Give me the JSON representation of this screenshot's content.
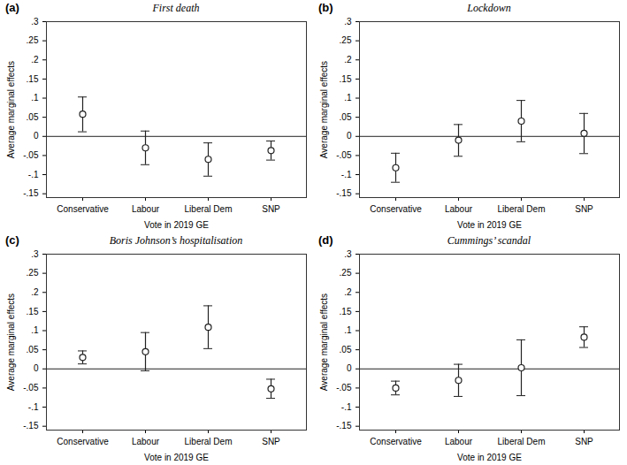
{
  "chart_data": [
    {
      "type": "scatter",
      "title": "First death",
      "annotations": [
        "(a)"
      ],
      "categories": [
        "Conservative",
        "Labour",
        "Liberal Dem",
        "SNP"
      ],
      "values": [
        0.058,
        -0.03,
        -0.06,
        -0.037
      ],
      "lower": [
        0.012,
        -0.074,
        -0.104,
        -0.062
      ],
      "upper": [
        0.103,
        0.014,
        -0.017,
        -0.012
      ],
      "xlabel": "Vote in 2019 GE",
      "ylabel": "Average marginal effects",
      "ylim": [
        -0.16,
        0.3
      ],
      "yticks": [
        {
          "value": -0.15,
          "label": "-.15"
        },
        {
          "value": -0.1,
          "label": "-.1"
        },
        {
          "value": -0.05,
          "label": "-.05"
        },
        0,
        {
          "value": 0.05,
          "label": ".05"
        },
        {
          "value": 0.1,
          "label": ".1"
        },
        {
          "value": 0.15,
          "label": ".15"
        },
        {
          "value": 0.2,
          "label": ".2"
        },
        {
          "value": 0.25,
          "label": ".25"
        },
        {
          "value": 0.3,
          "label": ".3"
        }
      ],
      "hline": 0,
      "color": "#222222",
      "marker": "circle"
    },
    {
      "type": "scatter",
      "title": "Lockdown",
      "annotations": [
        "(b)"
      ],
      "categories": [
        "Conservative",
        "Labour",
        "Liberal Dem",
        "SNP"
      ],
      "values": [
        -0.082,
        -0.01,
        0.04,
        0.008
      ],
      "lower": [
        -0.12,
        -0.052,
        -0.014,
        -0.045
      ],
      "upper": [
        -0.044,
        0.031,
        0.094,
        0.06
      ],
      "xlabel": "Vote in 2019 GE",
      "ylabel": "Average marginal effects",
      "ylim": [
        -0.16,
        0.3
      ],
      "yticks": [
        {
          "value": -0.15,
          "label": "-.15"
        },
        {
          "value": -0.1,
          "label": "-.1"
        },
        {
          "value": -0.05,
          "label": "-.05"
        },
        0,
        {
          "value": 0.05,
          "label": ".05"
        },
        {
          "value": 0.1,
          "label": ".1"
        },
        {
          "value": 0.15,
          "label": ".15"
        },
        {
          "value": 0.2,
          "label": ".2"
        },
        {
          "value": 0.25,
          "label": ".25"
        },
        {
          "value": 0.3,
          "label": ".3"
        }
      ],
      "hline": 0,
      "color": "#222222",
      "marker": "circle"
    },
    {
      "type": "scatter",
      "title": "Boris Johnson’s hospitalisation",
      "annotations": [
        "(c)"
      ],
      "categories": [
        "Conservative",
        "Labour",
        "Liberal Dem",
        "SNP"
      ],
      "values": [
        0.03,
        0.045,
        0.109,
        -0.052
      ],
      "lower": [
        0.013,
        -0.005,
        0.053,
        -0.077
      ],
      "upper": [
        0.047,
        0.095,
        0.165,
        -0.027
      ],
      "xlabel": "Vote in 2019 GE",
      "ylabel": "Average marginal effects",
      "ylim": [
        -0.16,
        0.3
      ],
      "yticks": [
        {
          "value": -0.15,
          "label": "-.15"
        },
        {
          "value": -0.1,
          "label": "-.1"
        },
        {
          "value": -0.05,
          "label": "-.05"
        },
        0,
        {
          "value": 0.05,
          "label": ".05"
        },
        {
          "value": 0.1,
          "label": ".1"
        },
        {
          "value": 0.15,
          "label": ".15"
        },
        {
          "value": 0.2,
          "label": ".2"
        },
        {
          "value": 0.25,
          "label": ".25"
        },
        {
          "value": 0.3,
          "label": ".3"
        }
      ],
      "hline": 0,
      "color": "#222222",
      "marker": "circle"
    },
    {
      "type": "scatter",
      "title": "Cummings’ scandal",
      "annotations": [
        "(d)"
      ],
      "categories": [
        "Conservative",
        "Labour",
        "Liberal Dem",
        "SNP"
      ],
      "values": [
        -0.05,
        -0.03,
        0.003,
        0.083
      ],
      "lower": [
        -0.068,
        -0.072,
        -0.07,
        0.056
      ],
      "upper": [
        -0.032,
        0.012,
        0.076,
        0.11
      ],
      "xlabel": "Vote in 2019 GE",
      "ylabel": "Average marginal effects",
      "ylim": [
        -0.16,
        0.3
      ],
      "yticks": [
        {
          "value": -0.15,
          "label": "-.15"
        },
        {
          "value": -0.1,
          "label": "-.1"
        },
        {
          "value": -0.05,
          "label": "-.05"
        },
        0,
        {
          "value": 0.05,
          "label": ".05"
        },
        {
          "value": 0.1,
          "label": ".1"
        },
        {
          "value": 0.15,
          "label": ".15"
        },
        {
          "value": 0.2,
          "label": ".2"
        },
        {
          "value": 0.25,
          "label": ".25"
        },
        {
          "value": 0.3,
          "label": ".3"
        }
      ],
      "hline": 0,
      "color": "#222222",
      "marker": "circle"
    }
  ]
}
